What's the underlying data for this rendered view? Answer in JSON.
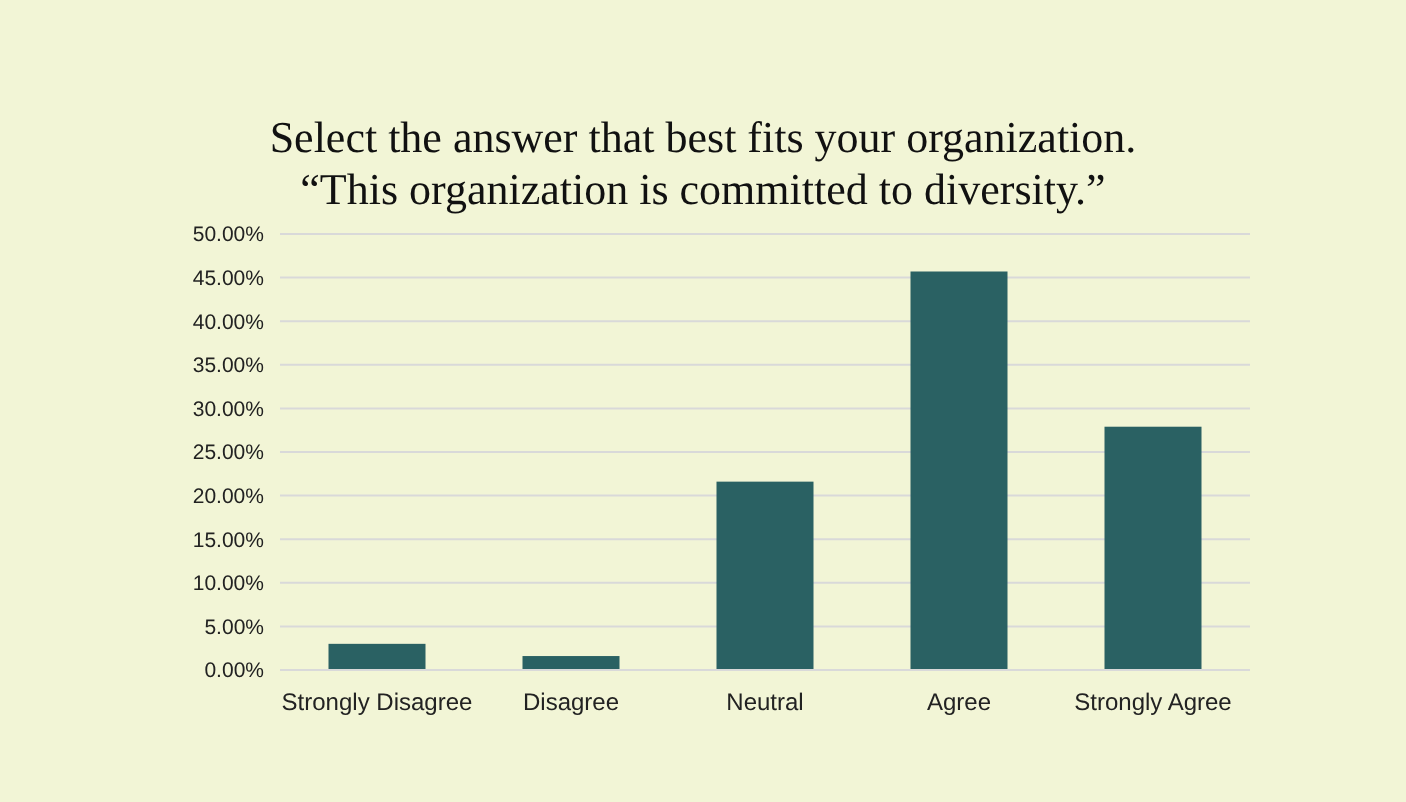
{
  "chart_data": {
    "type": "bar",
    "title": "Select the answer that best fits your organization.\n“This organization is committed to diversity.”",
    "categories": [
      "Strongly Disagree",
      "Disagree",
      "Neutral",
      "Agree",
      "Strongly Agree"
    ],
    "values": [
      3.0,
      1.6,
      21.6,
      45.7,
      27.9
    ],
    "color": "#2a6163",
    "ylim": [
      0,
      50
    ],
    "yticks": [
      {
        "value": 0,
        "label": "0.00%"
      },
      {
        "value": 5,
        "label": "5.00%"
      },
      {
        "value": 10,
        "label": "10.00%"
      },
      {
        "value": 15,
        "label": "15.00%"
      },
      {
        "value": 20,
        "label": "20.00%"
      },
      {
        "value": 25,
        "label": "25.00%"
      },
      {
        "value": 30,
        "label": "30.00%"
      },
      {
        "value": 35,
        "label": "35.00%"
      },
      {
        "value": 40,
        "label": "40.00%"
      },
      {
        "value": 45,
        "label": "45.00%"
      },
      {
        "value": 50,
        "label": "50.00%"
      }
    ],
    "grid": "y"
  }
}
